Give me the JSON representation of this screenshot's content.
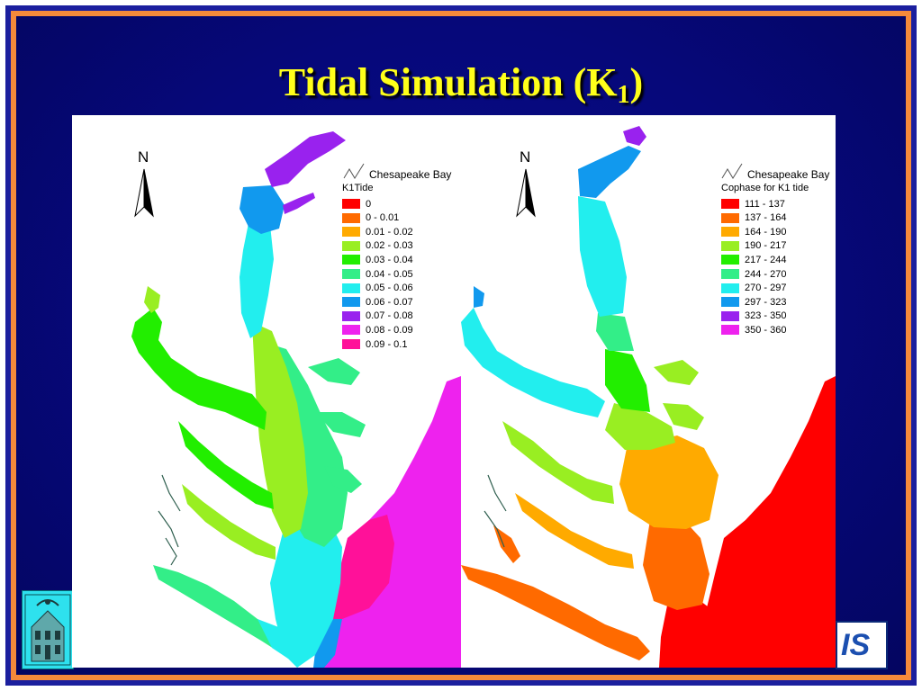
{
  "slide": {
    "title_main": "Tidal Simulation (K",
    "title_sub": "1",
    "title_close": ")"
  },
  "colors": {
    "frame_blue": "#1b1f9e",
    "frame_orange": "#f58a3a",
    "background": "#06087a",
    "title_yellow": "#ffff1a"
  },
  "maps": [
    {
      "id": "amplitude",
      "north_label": "N",
      "layer_label": "Chesapeake Bay",
      "legend_title": "K1Tide",
      "legend": [
        {
          "label": "0",
          "color": "#ff0000"
        },
        {
          "label": "0 - 0.01",
          "color": "#ff6a00"
        },
        {
          "label": "0.01 - 0.02",
          "color": "#ffaa00"
        },
        {
          "label": "0.02 - 0.03",
          "color": "#99ee22"
        },
        {
          "label": "0.03 - 0.04",
          "color": "#22ee00"
        },
        {
          "label": "0.04 - 0.05",
          "color": "#33ee88"
        },
        {
          "label": "0.05 - 0.06",
          "color": "#22eeee"
        },
        {
          "label": "0.06 - 0.07",
          "color": "#1199ee"
        },
        {
          "label": "0.07 - 0.08",
          "color": "#9922ee"
        },
        {
          "label": "0.08 - 0.09",
          "color": "#ee22ee"
        },
        {
          "label": "0.09 - 0.1",
          "color": "#ff1199"
        }
      ]
    },
    {
      "id": "cophase",
      "north_label": "N",
      "layer_label": "Chesapeake Bay",
      "legend_title": "Cophase for K1 tide",
      "legend": [
        {
          "label": "111 - 137",
          "color": "#ff0000"
        },
        {
          "label": "137 - 164",
          "color": "#ff6a00"
        },
        {
          "label": "164 - 190",
          "color": "#ffaa00"
        },
        {
          "label": "190 - 217",
          "color": "#99ee22"
        },
        {
          "label": "217 - 244",
          "color": "#22ee00"
        },
        {
          "label": "244 - 270",
          "color": "#33ee88"
        },
        {
          "label": "270 - 297",
          "color": "#22eeee"
        },
        {
          "label": "297 - 323",
          "color": "#1199ee"
        },
        {
          "label": "323 - 350",
          "color": "#9922ee"
        },
        {
          "label": "350 - 360",
          "color": "#ee22ee"
        }
      ]
    }
  ],
  "logos": {
    "right_text": "IS",
    "left_icon": "university-seal-icon"
  }
}
